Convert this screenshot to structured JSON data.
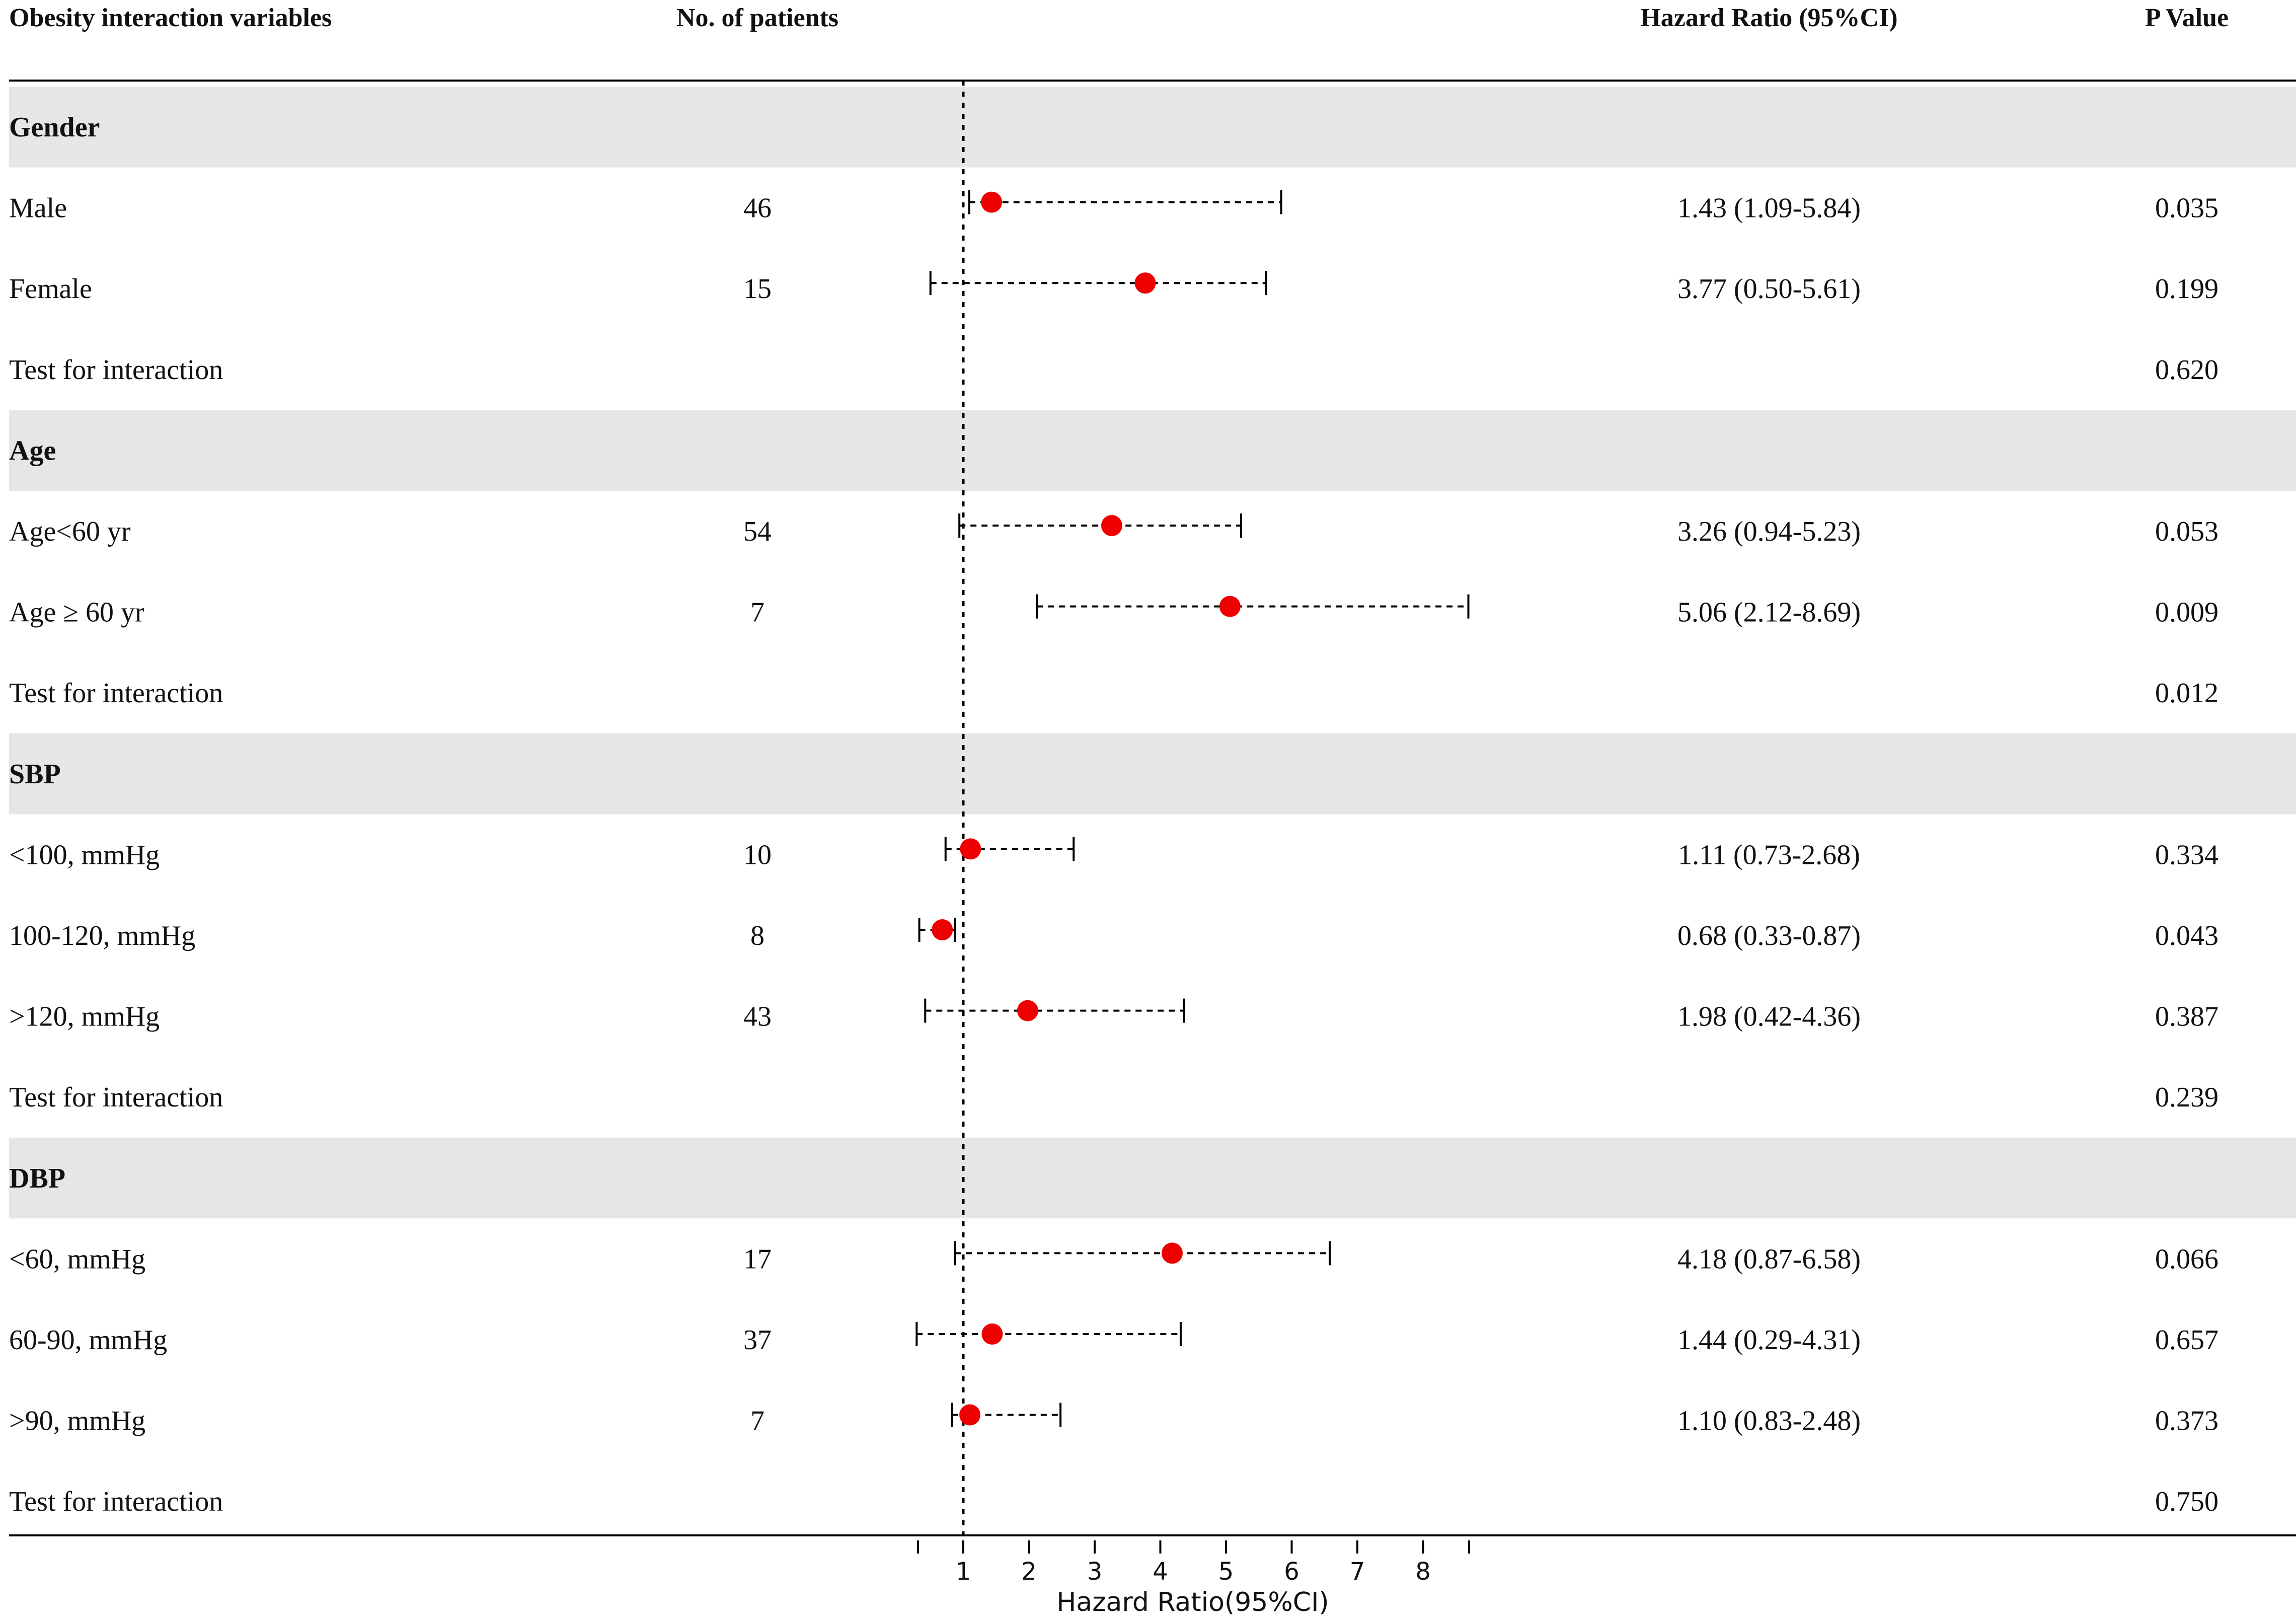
{
  "header": {
    "variables": "Obesity interaction variables",
    "patients": "No. of patients",
    "hr": "Hazard Ratio (95%CI)",
    "p": "P Value"
  },
  "chart_data": {
    "type": "forest",
    "reference_line": 1,
    "xlabel": "Hazard Ratio(95%CI)",
    "xticks": [
      1,
      2,
      3,
      4,
      5,
      6,
      7,
      8
    ],
    "xlim": [
      0.31,
      8.7
    ],
    "groups": [
      {
        "name": "Gender",
        "rows": [
          {
            "label": "Male",
            "n": "46",
            "hr": 1.43,
            "lo": 1.09,
            "hi": 5.84,
            "hr_text": "1.43 (1.09-5.84)",
            "p": "0.035"
          },
          {
            "label": "Female",
            "n": "15",
            "hr": 3.77,
            "lo": 0.5,
            "hi": 5.61,
            "hr_text": "3.77 (0.50-5.61)",
            "p": "0.199"
          }
        ],
        "interaction_label": "Test for interaction",
        "interaction_p": "0.620"
      },
      {
        "name": "Age",
        "rows": [
          {
            "label": "Age<60 yr",
            "n": "54",
            "hr": 3.26,
            "lo": 0.94,
            "hi": 5.23,
            "hr_text": "3.26 (0.94-5.23)",
            "p": "0.053"
          },
          {
            "label": "Age ≥ 60 yr",
            "n": "7",
            "hr": 5.06,
            "lo": 2.12,
            "hi": 8.69,
            "hr_text": "5.06 (2.12-8.69)",
            "p": "0.009"
          }
        ],
        "interaction_label": "Test for interaction",
        "interaction_p": "0.012"
      },
      {
        "name": "SBP",
        "rows": [
          {
            "label": "<100, mmHg",
            "n": "10",
            "hr": 1.11,
            "lo": 0.73,
            "hi": 2.68,
            "hr_text": "1.11 (0.73-2.68)",
            "p": "0.334"
          },
          {
            "label": "100-120, mmHg",
            "n": "8",
            "hr": 0.68,
            "lo": 0.33,
            "hi": 0.87,
            "hr_text": "0.68 (0.33-0.87)",
            "p": "0.043"
          },
          {
            "label": ">120, mmHg",
            "n": "43",
            "hr": 1.98,
            "lo": 0.42,
            "hi": 4.36,
            "hr_text": "1.98 (0.42-4.36)",
            "p": "0.387"
          }
        ],
        "interaction_label": "Test for interaction",
        "interaction_p": "0.239"
      },
      {
        "name": "DBP",
        "rows": [
          {
            "label": "<60, mmHg",
            "n": "17",
            "hr": 4.18,
            "lo": 0.87,
            "hi": 6.58,
            "hr_text": "4.18 (0.87-6.58)",
            "p": "0.066"
          },
          {
            "label": "60-90, mmHg",
            "n": "37",
            "hr": 1.44,
            "lo": 0.29,
            "hi": 4.31,
            "hr_text": "1.44 (0.29-4.31)",
            "p": "0.657"
          },
          {
            "label": ">90, mmHg",
            "n": "7",
            "hr": 1.1,
            "lo": 0.83,
            "hi": 2.48,
            "hr_text": "1.10 (0.83-2.48)",
            "p": "0.373"
          }
        ],
        "interaction_label": "Test for interaction",
        "interaction_p": "0.750"
      }
    ],
    "colors": {
      "band": "#e6e6e6",
      "point": "#ee0000",
      "line": "#000000",
      "text": "#111111"
    }
  }
}
